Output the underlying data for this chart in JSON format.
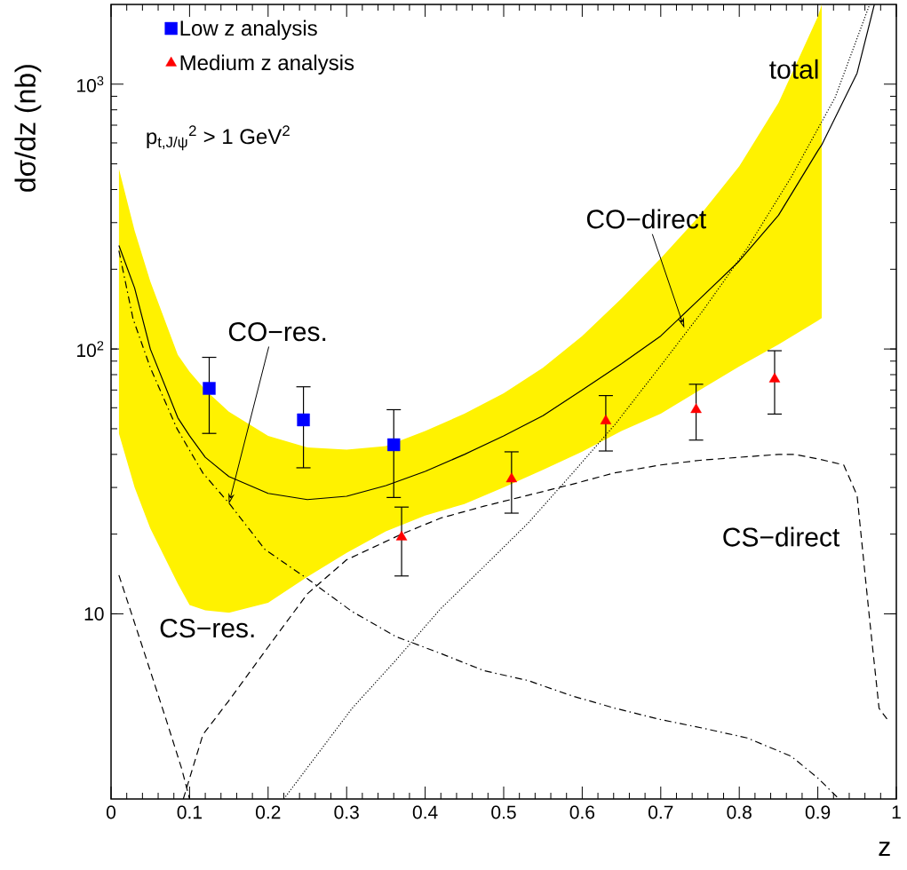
{
  "chart_data": {
    "type": "line",
    "xlabel": "z",
    "ylabel": "dσ/dz (nb)",
    "xlim": [
      0,
      1
    ],
    "ylim": [
      2,
      2000
    ],
    "log": "y",
    "legend": "top left",
    "xticks": [
      0,
      0.1,
      0.2,
      0.3,
      0.4,
      0.5,
      0.6,
      0.7,
      0.8,
      0.9,
      1
    ],
    "yticks": [
      10,
      {
        "value": 100,
        "label": "10$^{2}$"
      },
      {
        "value": 1000,
        "label": "10$^{3}$"
      }
    ],
    "series": [
      {
        "color": "#000000",
        "line_style": "solid",
        "x": [
          0.01,
          0.03,
          0.05,
          0.085,
          0.1,
          0.12,
          0.15,
          0.2,
          0.25,
          0.3,
          0.35,
          0.4,
          0.45,
          0.5,
          0.55,
          0.6,
          0.65,
          0.7,
          0.75,
          0.8,
          0.85,
          0.9,
          0.905,
          0.95,
          0.972
        ],
        "values": [
          246,
          170,
          100,
          55,
          47,
          39,
          33,
          28.5,
          27,
          27.8,
          30.5,
          34.5,
          40,
          47,
          56,
          70,
          88,
          112,
          155,
          215,
          320,
          560,
          590,
          1100,
          2000
        ],
        "lower": [
          48,
          30,
          21,
          13,
          10.8,
          10.3,
          10.1,
          11,
          13.8,
          17,
          20.5,
          23.5,
          26,
          30,
          35,
          41,
          49,
          57,
          70,
          86,
          104,
          128,
          131,
          null,
          null
        ],
        "upper": [
          480,
          280,
          180,
          95,
          82,
          70,
          58,
          47,
          42.5,
          41.7,
          43,
          49,
          57,
          68,
          85,
          112,
          155,
          220,
          320,
          490,
          850,
          1800,
          2000,
          null,
          null
        ]
      },
      {
        "color": "#000000",
        "line_style": "dashdot",
        "x": [
          0.01,
          0.028,
          0.05,
          0.084,
          0.117,
          0.151,
          0.196,
          0.251,
          0.307,
          0.363,
          0.419,
          0.475,
          0.531,
          0.587,
          0.642,
          0.698,
          0.754,
          0.81,
          0.866,
          0.9,
          0.927
        ],
        "values": [
          235,
          130,
          85,
          50,
          34,
          26,
          17.5,
          13.5,
          10.2,
          8.2,
          7.1,
          6.1,
          5.6,
          4.9,
          4.4,
          4.0,
          3.7,
          3.4,
          2.9,
          2.4,
          2
        ]
      },
      {
        "color": "#000000",
        "line_style": "dashed",
        "x": [
          0.01,
          0.04,
          0.07,
          0.09,
          0.1
        ],
        "values": [
          14,
          7.5,
          4,
          2.6,
          2
        ]
      },
      {
        "color": "#000000",
        "line_style": "dashed",
        "x": [
          0.092,
          0.117,
          0.15,
          0.2,
          0.25,
          0.3,
          0.37,
          0.42,
          0.475,
          0.53,
          0.59,
          0.64,
          0.7,
          0.75,
          0.8,
          0.85,
          0.87,
          0.9,
          0.933,
          0.95,
          0.966,
          0.978,
          0.991
        ],
        "values": [
          2,
          3.5,
          4.7,
          7.5,
          11.9,
          16,
          20,
          23,
          25.5,
          28,
          31,
          34,
          36.5,
          38,
          39,
          40,
          40,
          38.5,
          36.5,
          28,
          9.5,
          4.4,
          3.9
        ]
      },
      {
        "color": "#000000",
        "line_style": "dotted",
        "x": [
          0.22,
          0.307,
          0.363,
          0.419,
          0.475,
          0.531,
          0.587,
          0.642,
          0.698,
          0.754,
          0.81,
          0.866,
          0.922,
          0.966
        ],
        "values": [
          2,
          4.4,
          6.7,
          10.4,
          15.1,
          22,
          33.8,
          52,
          85,
          140,
          240,
          445,
          890,
          2000
        ]
      },
      {
        "type": "scatter",
        "name": "Low z analysis",
        "color": "#0000ff",
        "marker": "square",
        "x": [
          0.125,
          0.245,
          0.36
        ],
        "values": [
          71,
          54,
          43.5
        ],
        "errors": [
          [
            48,
            93
          ],
          [
            35.6,
            72
          ],
          [
            27.5,
            59
          ]
        ]
      },
      {
        "type": "scatter",
        "name": "Medium z analysis",
        "color": "#ff0000",
        "marker": "triangle",
        "x": [
          0.37,
          0.51,
          0.63,
          0.745,
          0.845
        ],
        "values": [
          19.5,
          32.3,
          53.5,
          59,
          77
        ],
        "errors": [
          [
            13.9,
            25.3
          ],
          [
            24,
            40.9
          ],
          [
            41.2,
            66.7
          ],
          [
            45.3,
            73.6
          ],
          [
            56.8,
            98.5
          ]
        ]
      }
    ],
    "annotations": [
      {
        "text": "total",
        "x": 0.87,
        "y": 1140
      },
      {
        "text": "CO−direct",
        "x": 0.73,
        "y": 120
      },
      {
        "text": "CO−res.",
        "x": 0.15,
        "y": 26
      },
      "CS−direct",
      "CS−res.",
      "p$_{t,J/ψ}$$^{2}$ > 1 GeV$^{2}$"
    ]
  }
}
